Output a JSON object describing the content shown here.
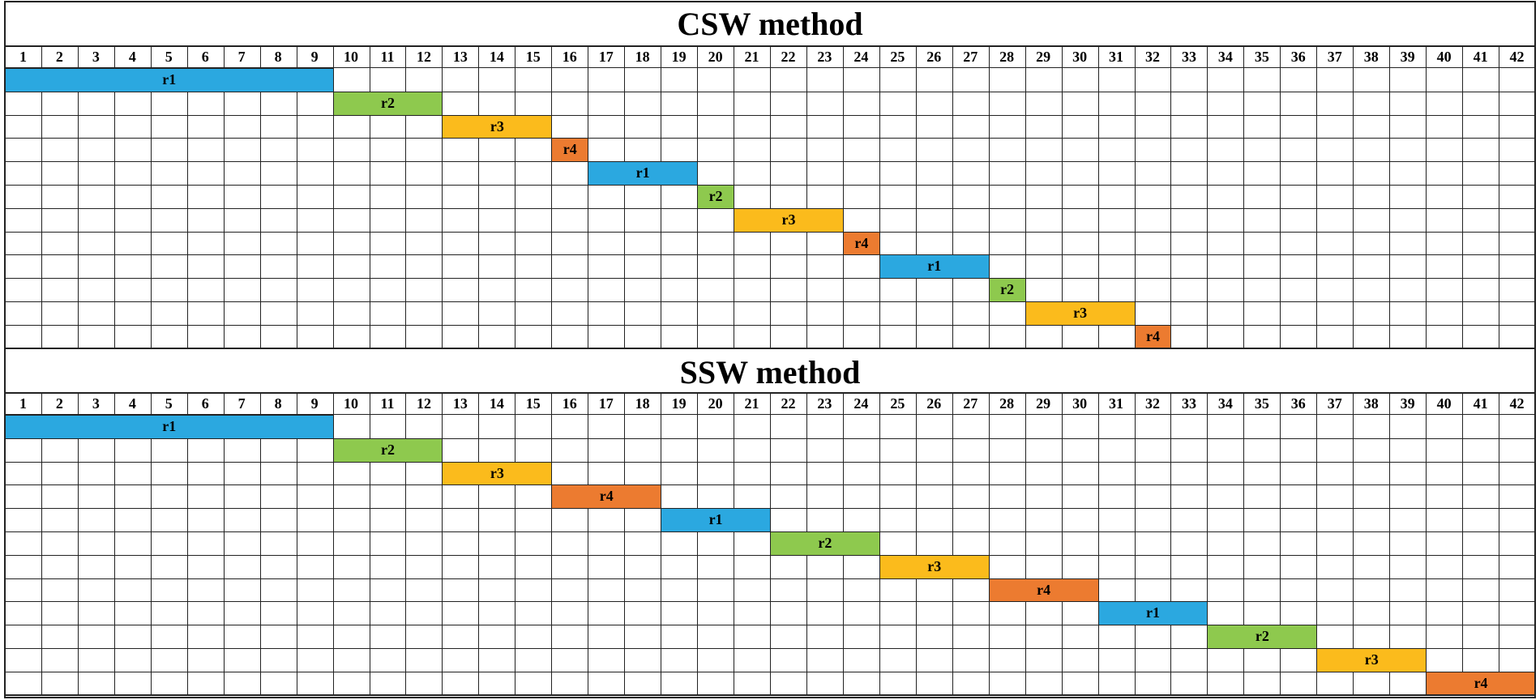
{
  "colors": {
    "r1": "#2ba8e0",
    "r2": "#8ec94e",
    "r3": "#fbbb1c",
    "r4": "#ec7b30",
    "grid": "#222222"
  },
  "columns": [
    "1",
    "2",
    "3",
    "4",
    "5",
    "6",
    "7",
    "8",
    "9",
    "10",
    "11",
    "12",
    "13",
    "14",
    "15",
    "16",
    "17",
    "18",
    "19",
    "20",
    "21",
    "22",
    "23",
    "24",
    "25",
    "26",
    "27",
    "28",
    "29",
    "30",
    "31",
    "32",
    "33",
    "34",
    "35",
    "36",
    "37",
    "38",
    "39",
    "40",
    "41",
    "42"
  ],
  "row_count": 12,
  "panels": [
    {
      "id": "csw",
      "title": "CSW method",
      "tasks": [
        {
          "label": "r1",
          "row": 1,
          "start": 1,
          "end": 9
        },
        {
          "label": "r2",
          "row": 2,
          "start": 10,
          "end": 12
        },
        {
          "label": "r3",
          "row": 3,
          "start": 13,
          "end": 15
        },
        {
          "label": "r4",
          "row": 4,
          "start": 16,
          "end": 16
        },
        {
          "label": "r1",
          "row": 5,
          "start": 17,
          "end": 19
        },
        {
          "label": "r2",
          "row": 6,
          "start": 20,
          "end": 20
        },
        {
          "label": "r3",
          "row": 7,
          "start": 21,
          "end": 23
        },
        {
          "label": "r4",
          "row": 8,
          "start": 24,
          "end": 24
        },
        {
          "label": "r1",
          "row": 9,
          "start": 25,
          "end": 27
        },
        {
          "label": "r2",
          "row": 10,
          "start": 28,
          "end": 28
        },
        {
          "label": "r3",
          "row": 11,
          "start": 29,
          "end": 31
        },
        {
          "label": "r4",
          "row": 12,
          "start": 32,
          "end": 32
        }
      ]
    },
    {
      "id": "ssw",
      "title": "SSW method",
      "tasks": [
        {
          "label": "r1",
          "row": 1,
          "start": 1,
          "end": 9
        },
        {
          "label": "r2",
          "row": 2,
          "start": 10,
          "end": 12
        },
        {
          "label": "r3",
          "row": 3,
          "start": 13,
          "end": 15
        },
        {
          "label": "r4",
          "row": 4,
          "start": 16,
          "end": 18
        },
        {
          "label": "r1",
          "row": 5,
          "start": 19,
          "end": 21
        },
        {
          "label": "r2",
          "row": 6,
          "start": 22,
          "end": 24
        },
        {
          "label": "r3",
          "row": 7,
          "start": 25,
          "end": 27
        },
        {
          "label": "r4",
          "row": 8,
          "start": 28,
          "end": 30
        },
        {
          "label": "r1",
          "row": 9,
          "start": 31,
          "end": 33
        },
        {
          "label": "r2",
          "row": 10,
          "start": 34,
          "end": 36
        },
        {
          "label": "r3",
          "row": 11,
          "start": 37,
          "end": 39
        },
        {
          "label": "r4",
          "row": 12,
          "start": 40,
          "end": 42
        }
      ]
    }
  ]
}
